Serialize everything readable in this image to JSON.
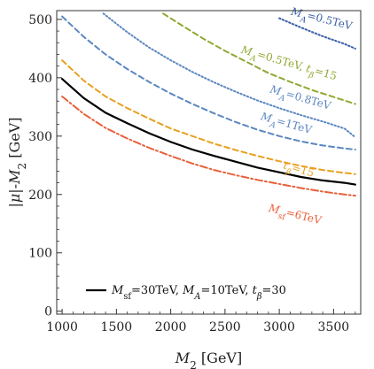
{
  "chart_data": {
    "type": "line",
    "title": "",
    "xlabel": "M₂ [GeV]",
    "ylabel": "|μ|-M₂ [GeV]",
    "xlim": [
      950,
      3750
    ],
    "ylim": [
      -5,
      515
    ],
    "xticks": [
      1000,
      1500,
      2000,
      2500,
      3000,
      3500
    ],
    "yticks": [
      0,
      100,
      200,
      300,
      400,
      500
    ],
    "xtick_labels": [
      "1000",
      "1500",
      "2000",
      "2500",
      "3000",
      "3500"
    ],
    "ytick_labels": [
      "0",
      "100",
      "200",
      "300",
      "400",
      "500"
    ],
    "grid": false,
    "legend": {
      "position": "bottom-left",
      "entries": [
        "M_sf=30TeV, M_A=10TeV, t_β=30"
      ]
    },
    "series": [
      {
        "name": "M_sf=30TeV, M_A=10TeV, t_β=30",
        "label": "",
        "color": "#000000",
        "style": "solid",
        "x": [
          1000,
          1200,
          1400,
          1600,
          1800,
          2000,
          2200,
          2400,
          2600,
          2800,
          3000,
          3200,
          3400,
          3600,
          3700
        ],
        "y": [
          398,
          365,
          340,
          322,
          305,
          290,
          277,
          266,
          256,
          246,
          238,
          230,
          224,
          220,
          217
        ]
      },
      {
        "name": "t_β=15",
        "label": "t_β=15",
        "color": "#e8a020",
        "style": "dashed",
        "x": [
          1000,
          1200,
          1400,
          1600,
          1800,
          2000,
          2200,
          2400,
          2600,
          2800,
          3000,
          3200,
          3400,
          3600,
          3700
        ],
        "y": [
          430,
          395,
          368,
          348,
          330,
          313,
          300,
          287,
          276,
          266,
          257,
          249,
          242,
          237,
          235
        ]
      },
      {
        "name": "M_sf=6TeV",
        "label": "M_sf=6TeV",
        "color": "#e8603a",
        "style": "dashdot",
        "x": [
          1000,
          1200,
          1400,
          1600,
          1800,
          2000,
          2200,
          2400,
          2600,
          2800,
          3000,
          3200,
          3400,
          3600,
          3700
        ],
        "y": [
          368,
          338,
          314,
          296,
          280,
          266,
          253,
          242,
          233,
          225,
          218,
          211,
          205,
          200,
          198
        ]
      },
      {
        "name": "M_A=1TeV",
        "label": "M_A=1TeV",
        "color": "#5b87c0",
        "style": "dashed",
        "x": [
          1000,
          1200,
          1400,
          1600,
          1800,
          2000,
          2200,
          2400,
          2600,
          2800,
          3000,
          3200,
          3400,
          3600,
          3700
        ],
        "y": [
          505,
          470,
          440,
          415,
          393,
          373,
          355,
          339,
          324,
          311,
          300,
          291,
          284,
          279,
          277
        ]
      },
      {
        "name": "M_A=0.8TeV",
        "label": "M_A=0.8TeV",
        "color": "#5b87c0",
        "style": "dotted",
        "x": [
          1380,
          1600,
          1800,
          2000,
          2200,
          2400,
          2600,
          2800,
          3000,
          3200,
          3400,
          3600,
          3700
        ],
        "y": [
          510,
          478,
          452,
          430,
          410,
          392,
          376,
          361,
          348,
          336,
          325,
          313,
          298
        ]
      },
      {
        "name": "M_A=0.5TeV, t_β=15",
        "label": "M_A=0.5TeV, t_β=15",
        "color": "#8fa832",
        "style": "dashed",
        "x": [
          1930,
          2100,
          2300,
          2500,
          2700,
          2900,
          3100,
          3300,
          3500,
          3700
        ],
        "y": [
          510,
          490,
          467,
          446,
          427,
          408,
          393,
          379,
          367,
          355
        ]
      },
      {
        "name": "M_A=0.5TeV",
        "label": "M_A=0.5TeV",
        "color": "#3a5fa8",
        "style": "dotted",
        "x": [
          3000,
          3200,
          3400,
          3600,
          3700
        ],
        "y": [
          502,
          486,
          471,
          458,
          450
        ]
      }
    ]
  }
}
